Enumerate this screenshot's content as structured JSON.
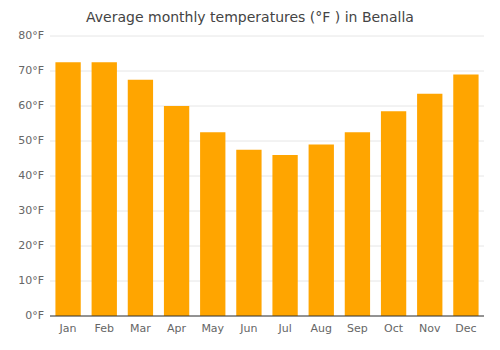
{
  "chart_data": {
    "type": "bar",
    "title": "Average monthly temperatures (°F ) in Benalla",
    "categories": [
      "Jan",
      "Feb",
      "Mar",
      "Apr",
      "May",
      "Jun",
      "Jul",
      "Aug",
      "Sep",
      "Oct",
      "Nov",
      "Dec"
    ],
    "values": [
      72.5,
      72.5,
      67.5,
      60.0,
      52.5,
      47.5,
      46.0,
      49.0,
      52.5,
      58.5,
      63.5,
      69.0
    ],
    "color": "#FFA500",
    "ylim": [
      0,
      80
    ],
    "yticks": [
      {
        "value": 0,
        "label": "0°F"
      },
      {
        "value": 10,
        "label": "10°F"
      },
      {
        "value": 20,
        "label": "20°F"
      },
      {
        "value": 30,
        "label": "30°F"
      },
      {
        "value": 40,
        "label": "40°F"
      },
      {
        "value": 50,
        "label": "50°F"
      },
      {
        "value": 60,
        "label": "60°F"
      },
      {
        "value": 70,
        "label": "70°F"
      },
      {
        "value": 80,
        "label": "80°F"
      }
    ],
    "grid": true
  }
}
